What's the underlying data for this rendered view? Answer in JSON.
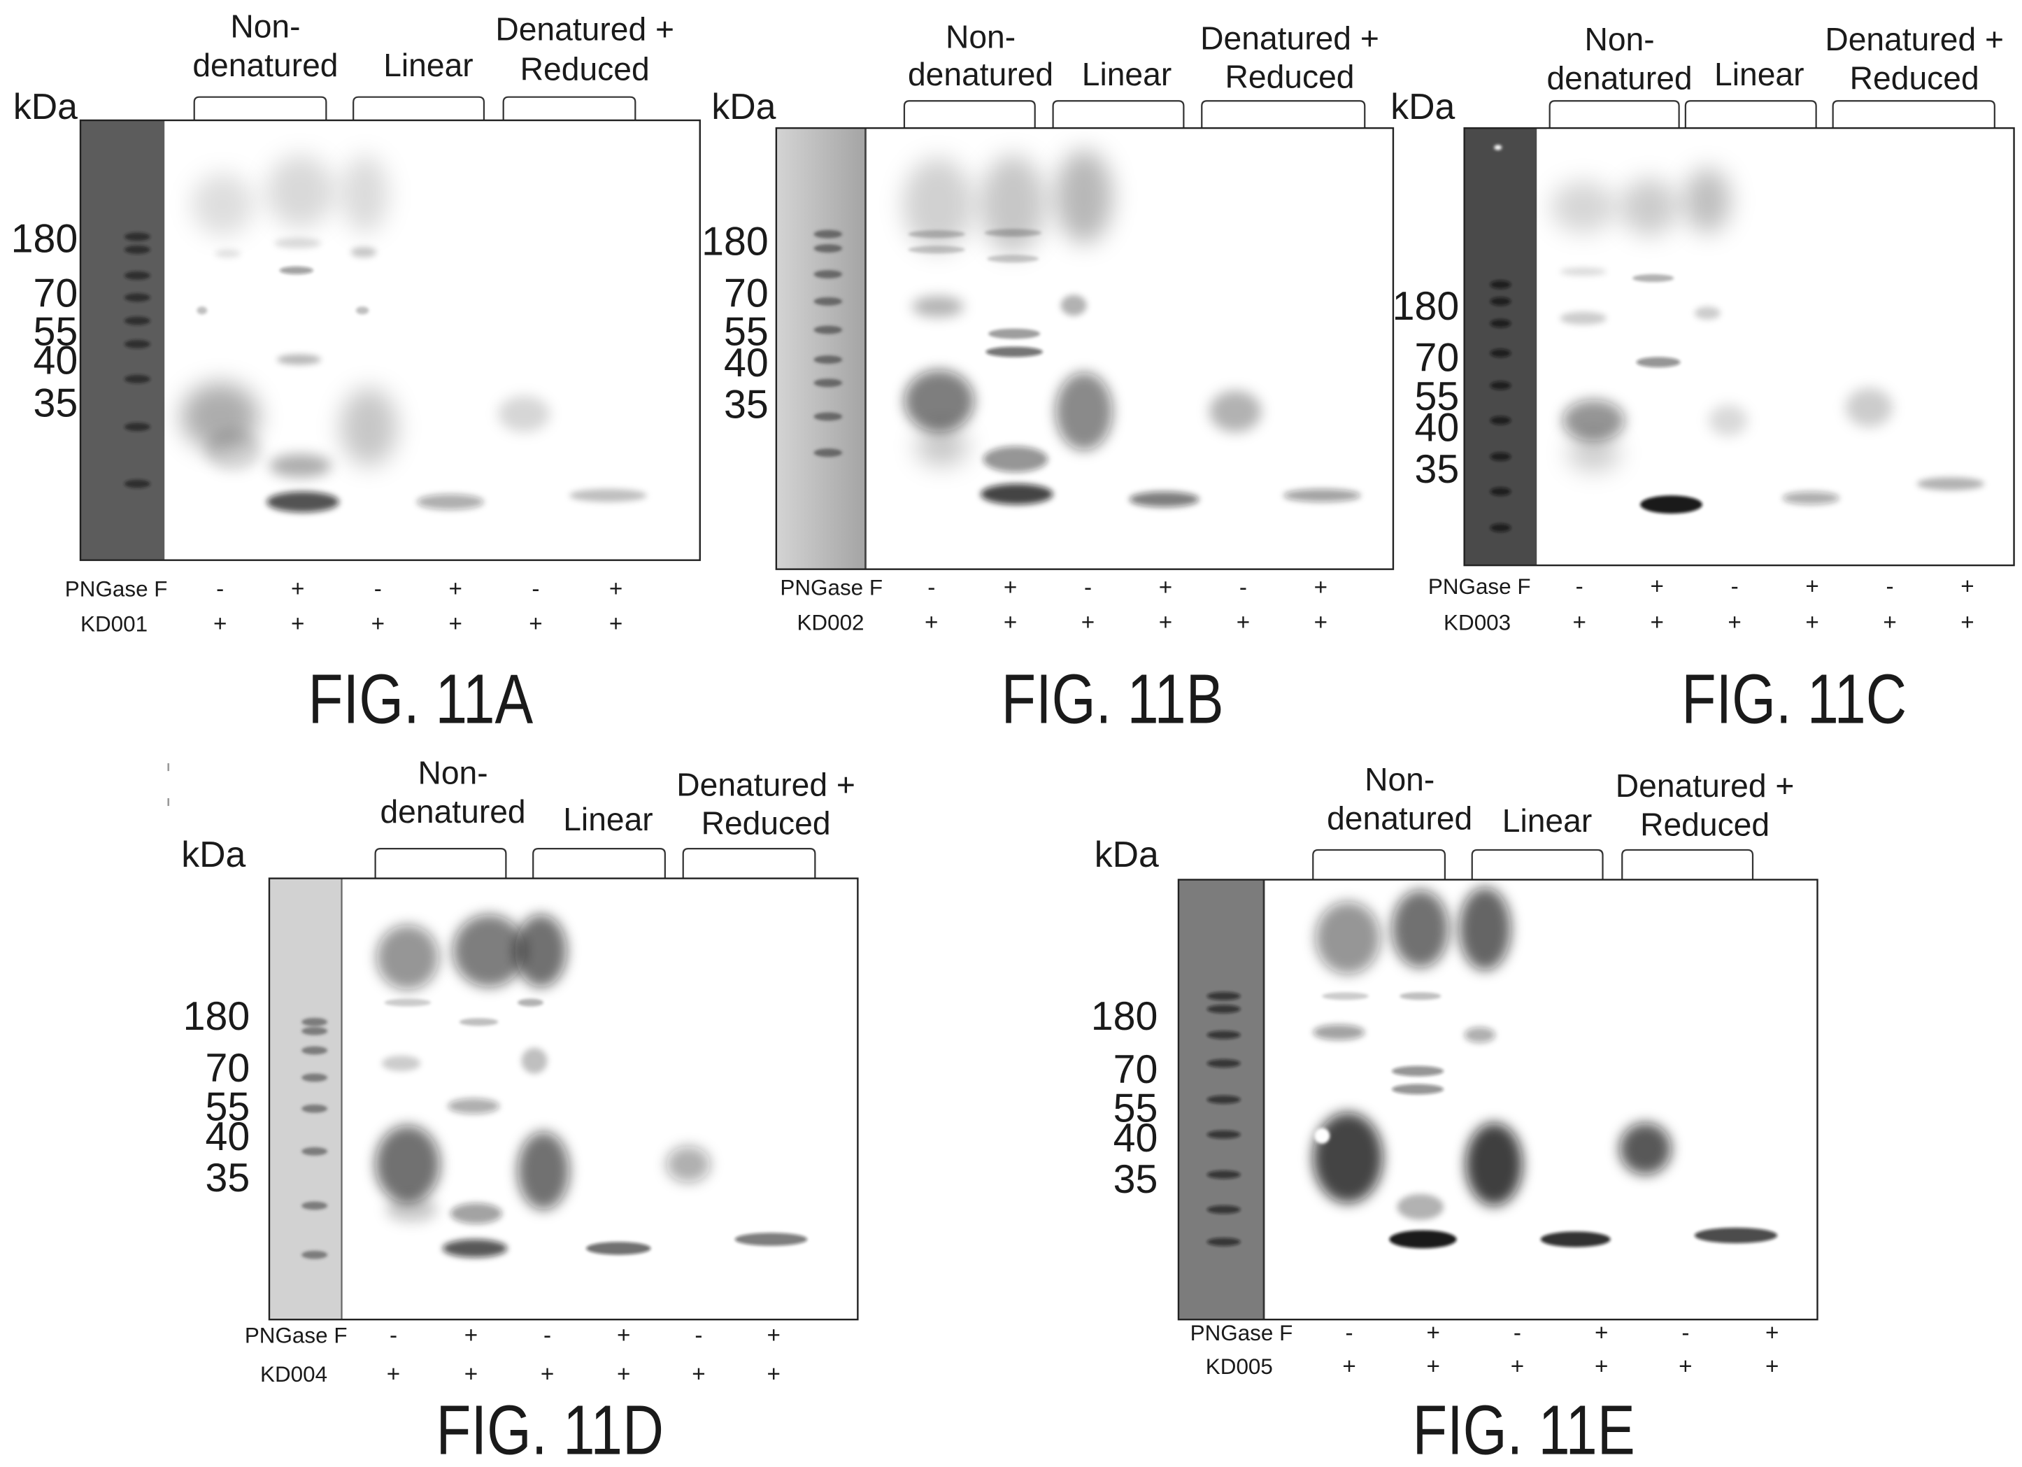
{
  "figures": [
    {
      "caption": "FIG. 11A",
      "unit_label": "kDa",
      "groups": [
        {
          "lines": [
            "Non-",
            "denatured"
          ]
        },
        {
          "lines": [
            "Linear"
          ]
        },
        {
          "lines": [
            "Denatured +",
            "Reduced"
          ]
        }
      ],
      "markers": [
        "180",
        "70",
        "55",
        "40",
        "35"
      ],
      "rows": [
        {
          "label": "PNGase F",
          "values": [
            "-",
            "+",
            "-",
            "+",
            "-",
            "+"
          ]
        },
        {
          "label": "KD001",
          "values": [
            "+",
            "+",
            "+",
            "+",
            "+",
            "+"
          ]
        }
      ]
    },
    {
      "caption": "FIG. 11B",
      "unit_label": "kDa",
      "groups": [
        {
          "lines": [
            "Non-",
            "denatured"
          ]
        },
        {
          "lines": [
            "Linear"
          ]
        },
        {
          "lines": [
            "Denatured +",
            "Reduced"
          ]
        }
      ],
      "markers": [
        "180",
        "70",
        "55",
        "40",
        "35"
      ],
      "rows": [
        {
          "label": "PNGase F",
          "values": [
            "-",
            "+",
            "-",
            "+",
            "-",
            "+"
          ]
        },
        {
          "label": "KD002",
          "values": [
            "+",
            "+",
            "+",
            "+",
            "+",
            "+"
          ]
        }
      ]
    },
    {
      "caption": "FIG. 11C",
      "unit_label": "kDa",
      "groups": [
        {
          "lines": [
            "Non-",
            "denatured"
          ]
        },
        {
          "lines": [
            "Linear"
          ]
        },
        {
          "lines": [
            "Denatured +",
            "Reduced"
          ]
        }
      ],
      "markers": [
        "180",
        "70",
        "55",
        "40",
        "35"
      ],
      "rows": [
        {
          "label": "PNGase F",
          "values": [
            "-",
            "+",
            "-",
            "+",
            "-",
            "+"
          ]
        },
        {
          "label": "KD003",
          "values": [
            "+",
            "+",
            "+",
            "+",
            "+",
            "+"
          ]
        }
      ]
    },
    {
      "caption": "FIG. 11D",
      "unit_label": "kDa",
      "groups": [
        {
          "lines": [
            "Non-",
            "denatured"
          ]
        },
        {
          "lines": [
            "Linear"
          ]
        },
        {
          "lines": [
            "Denatured +",
            "Reduced"
          ]
        }
      ],
      "markers": [
        "180",
        "70",
        "55",
        "40",
        "35"
      ],
      "rows": [
        {
          "label": "PNGase F",
          "values": [
            "-",
            "+",
            "-",
            "+",
            "-",
            "+"
          ]
        },
        {
          "label": "KD004",
          "values": [
            "+",
            "+",
            "+",
            "+",
            "+",
            "+"
          ]
        }
      ]
    },
    {
      "caption": "FIG. 11E",
      "unit_label": "kDa",
      "groups": [
        {
          "lines": [
            "Non-",
            "denatured"
          ]
        },
        {
          "lines": [
            "Linear"
          ]
        },
        {
          "lines": [
            "Denatured +",
            "Reduced"
          ]
        }
      ],
      "markers": [
        "180",
        "70",
        "55",
        "40",
        "35"
      ],
      "rows": [
        {
          "label": "PNGase F",
          "values": [
            "-",
            "+",
            "-",
            "+",
            "-",
            "+"
          ]
        },
        {
          "label": "KD005",
          "values": [
            "+",
            "+",
            "+",
            "+",
            "+",
            "+"
          ]
        }
      ]
    }
  ]
}
